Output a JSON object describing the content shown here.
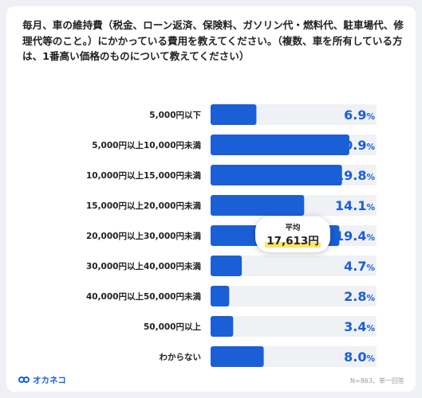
{
  "title": "毎月、車の維持費（税金、ローン返済、保険料、ガソリン代・燃料代、駐車場代、修理代等のこと。）にかかっている費用を教えてください。（複数、車を所有している方は、1番高い価格のものについて教えてください）",
  "average": {
    "label": "平均",
    "value": "17,613",
    "unit": "円"
  },
  "footer": {
    "logo_text": "オカネコ",
    "note": "N=863、単一回答"
  },
  "colors": {
    "bar": "#1a5fd6",
    "track": "#eff1f4",
    "value_text": "#1a5fd6",
    "highlight": "#ffe36b"
  },
  "chart_data": {
    "type": "bar",
    "orientation": "horizontal",
    "categories": [
      "5,000円以下",
      "5,000円以上10,000円未満",
      "10,000円以上15,000円未満",
      "15,000円以上20,000円未満",
      "20,000円以上30,000円未満",
      "30,000円以上40,000円未満",
      "40,000円以上50,000円未満",
      "50,000円以上",
      "わからない"
    ],
    "values": [
      6.9,
      20.9,
      19.8,
      14.1,
      19.4,
      4.7,
      2.8,
      3.4,
      8.0
    ],
    "value_labels": [
      "6.9",
      "20.9",
      "19.8",
      "14.1",
      "19.4",
      "4.7",
      "2.8",
      "3.4",
      "8.0"
    ],
    "value_suffix": "%",
    "xlim": [
      0,
      25
    ]
  }
}
